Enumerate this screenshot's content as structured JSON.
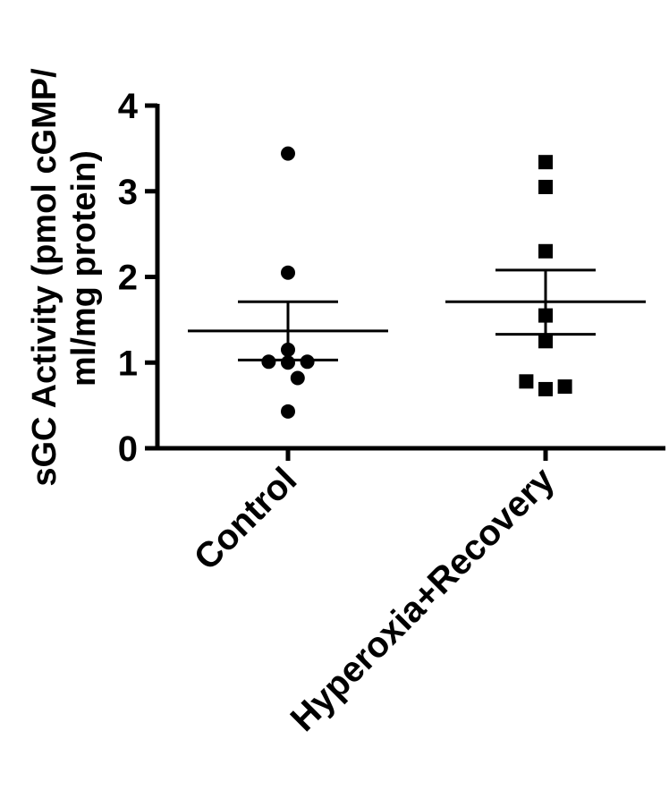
{
  "chart_data": {
    "type": "scatter",
    "ylabel_lines": [
      "sGC Activity (pmol cGMP/",
      "ml/mg protein)"
    ],
    "xlabel": "",
    "ylim": [
      0,
      4
    ],
    "yticks": [
      "0",
      "1",
      "2",
      "3",
      "4"
    ],
    "grid": false,
    "categories": [
      "Control",
      "Hyperoxia+Recovery"
    ],
    "series": [
      {
        "category": "Control",
        "marker": "circle",
        "values": [
          3.44,
          2.05,
          1.15,
          1.01,
          1.0,
          1.01,
          0.82,
          0.43
        ],
        "offsets": [
          0,
          0,
          0,
          -0.6,
          0,
          0.6,
          0.3,
          0
        ],
        "mean": 1.37,
        "sem_upper": 1.71,
        "sem_lower": 1.03
      },
      {
        "category": "Hyperoxia+Recovery",
        "marker": "square",
        "values": [
          3.34,
          3.05,
          2.3,
          1.55,
          1.25,
          0.78,
          0.69,
          0.72
        ],
        "offsets": [
          0,
          0,
          0,
          0,
          0,
          -0.6,
          0,
          0.6
        ],
        "mean": 1.71,
        "sem_upper": 2.08,
        "sem_lower": 1.33
      }
    ]
  }
}
